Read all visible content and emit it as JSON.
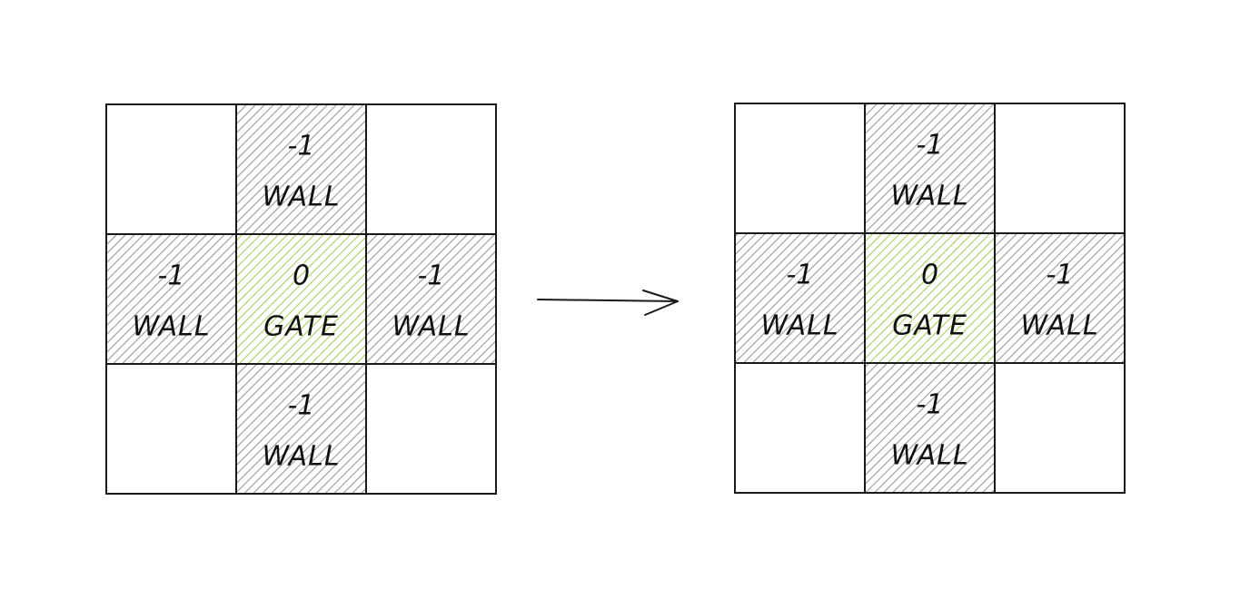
{
  "colors": {
    "wall_fill": "#c8c8c8",
    "gate_fill": "#c6e48b",
    "empty_fill": "#ffffff",
    "stroke": "#1a1a1a"
  },
  "grids": [
    {
      "cells": [
        {
          "type": "empty",
          "value": "",
          "label": ""
        },
        {
          "type": "wall",
          "value": "-1",
          "label": "WALL"
        },
        {
          "type": "empty",
          "value": "",
          "label": ""
        },
        {
          "type": "wall",
          "value": "-1",
          "label": "WALL"
        },
        {
          "type": "gate",
          "value": "0",
          "label": "GATE"
        },
        {
          "type": "wall",
          "value": "-1",
          "label": "WALL"
        },
        {
          "type": "empty",
          "value": "",
          "label": ""
        },
        {
          "type": "wall",
          "value": "-1",
          "label": "WALL"
        },
        {
          "type": "empty",
          "value": "",
          "label": ""
        }
      ]
    },
    {
      "cells": [
        {
          "type": "empty",
          "value": "",
          "label": ""
        },
        {
          "type": "wall",
          "value": "-1",
          "label": "WALL"
        },
        {
          "type": "empty",
          "value": "",
          "label": ""
        },
        {
          "type": "wall",
          "value": "-1",
          "label": "WALL"
        },
        {
          "type": "gate",
          "value": "0",
          "label": "GATE"
        },
        {
          "type": "wall",
          "value": "-1",
          "label": "WALL"
        },
        {
          "type": "empty",
          "value": "",
          "label": ""
        },
        {
          "type": "wall",
          "value": "-1",
          "label": "WALL"
        },
        {
          "type": "empty",
          "value": "",
          "label": ""
        }
      ]
    }
  ]
}
